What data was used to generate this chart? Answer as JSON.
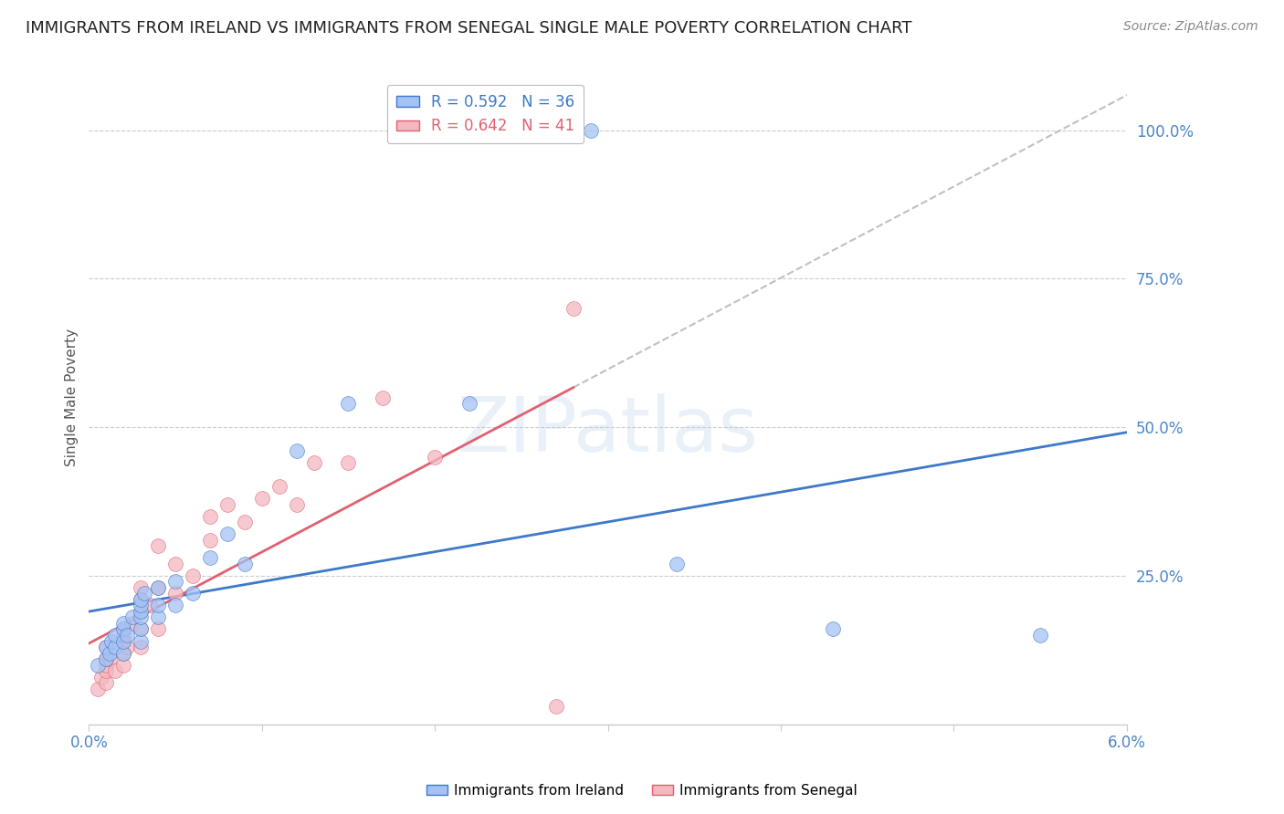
{
  "title": "IMMIGRANTS FROM IRELAND VS IMMIGRANTS FROM SENEGAL SINGLE MALE POVERTY CORRELATION CHART",
  "source": "Source: ZipAtlas.com",
  "ylabel": "Single Male Poverty",
  "xlim": [
    0.0,
    0.06
  ],
  "ylim": [
    0.0,
    1.1
  ],
  "yticks": [
    0.0,
    0.25,
    0.5,
    0.75,
    1.0
  ],
  "ytick_labels": [
    "",
    "25.0%",
    "50.0%",
    "75.0%",
    "100.0%"
  ],
  "xticks": [
    0.0,
    0.01,
    0.02,
    0.03,
    0.04,
    0.05,
    0.06
  ],
  "xtick_labels": [
    "0.0%",
    "",
    "",
    "",
    "",
    "",
    "6.0%"
  ],
  "ireland_color": "#a4c2f4",
  "senegal_color": "#f4b8c1",
  "ireland_line_color": "#3d78c9",
  "senegal_line_color": "#e06070",
  "ireland_R": 0.592,
  "ireland_N": 36,
  "senegal_R": 0.642,
  "senegal_N": 41,
  "legend_label_ireland": "Immigrants from Ireland",
  "legend_label_senegal": "Immigrants from Senegal",
  "watermark": "ZIPatlas",
  "ireland_x": [
    0.0005,
    0.001,
    0.001,
    0.0012,
    0.0013,
    0.0015,
    0.0015,
    0.002,
    0.002,
    0.002,
    0.002,
    0.0022,
    0.0025,
    0.003,
    0.003,
    0.003,
    0.003,
    0.003,
    0.003,
    0.0032,
    0.004,
    0.004,
    0.004,
    0.005,
    0.005,
    0.006,
    0.007,
    0.008,
    0.009,
    0.012,
    0.015,
    0.022,
    0.029,
    0.034,
    0.043,
    0.055
  ],
  "ireland_y": [
    0.1,
    0.11,
    0.13,
    0.12,
    0.14,
    0.13,
    0.15,
    0.12,
    0.14,
    0.16,
    0.17,
    0.15,
    0.18,
    0.14,
    0.16,
    0.18,
    0.19,
    0.2,
    0.21,
    0.22,
    0.18,
    0.2,
    0.23,
    0.2,
    0.24,
    0.22,
    0.28,
    0.32,
    0.27,
    0.46,
    0.54,
    0.54,
    1.0,
    0.27,
    0.16,
    0.15
  ],
  "senegal_x": [
    0.0005,
    0.0007,
    0.001,
    0.001,
    0.001,
    0.001,
    0.001,
    0.0012,
    0.0015,
    0.002,
    0.002,
    0.002,
    0.002,
    0.002,
    0.0022,
    0.0025,
    0.003,
    0.003,
    0.003,
    0.003,
    0.003,
    0.0035,
    0.004,
    0.004,
    0.004,
    0.005,
    0.005,
    0.006,
    0.007,
    0.007,
    0.008,
    0.009,
    0.01,
    0.011,
    0.012,
    0.013,
    0.015,
    0.017,
    0.02,
    0.027,
    0.028
  ],
  "senegal_y": [
    0.06,
    0.08,
    0.07,
    0.09,
    0.1,
    0.11,
    0.13,
    0.11,
    0.09,
    0.1,
    0.12,
    0.14,
    0.15,
    0.16,
    0.13,
    0.17,
    0.13,
    0.16,
    0.19,
    0.21,
    0.23,
    0.2,
    0.16,
    0.23,
    0.3,
    0.22,
    0.27,
    0.25,
    0.31,
    0.35,
    0.37,
    0.34,
    0.38,
    0.4,
    0.37,
    0.44,
    0.44,
    0.55,
    0.45,
    0.03,
    0.7
  ],
  "background_color": "#ffffff",
  "grid_color": "#cccccc",
  "axis_color": "#cccccc",
  "tick_color": "#4a86c8",
  "dashed_line_color": "#c0c0c0",
  "title_fontsize": 13,
  "label_fontsize": 11,
  "tick_fontsize": 12
}
